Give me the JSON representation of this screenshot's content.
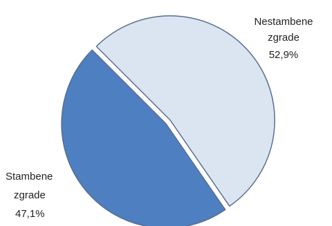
{
  "chart_data": {
    "type": "pie",
    "slices": [
      {
        "label_lines": [
          "Nestambene",
          "zgrade"
        ],
        "value": 52.9,
        "value_label": "52,9%",
        "color": "#dbe4f1",
        "exploded": true
      },
      {
        "label_lines": [
          "Stambene",
          "zgrade"
        ],
        "value": 47.1,
        "value_label": "47,1%",
        "color": "#4e7fc1",
        "exploded": false
      }
    ],
    "edge_color": "#5a6f8f"
  }
}
